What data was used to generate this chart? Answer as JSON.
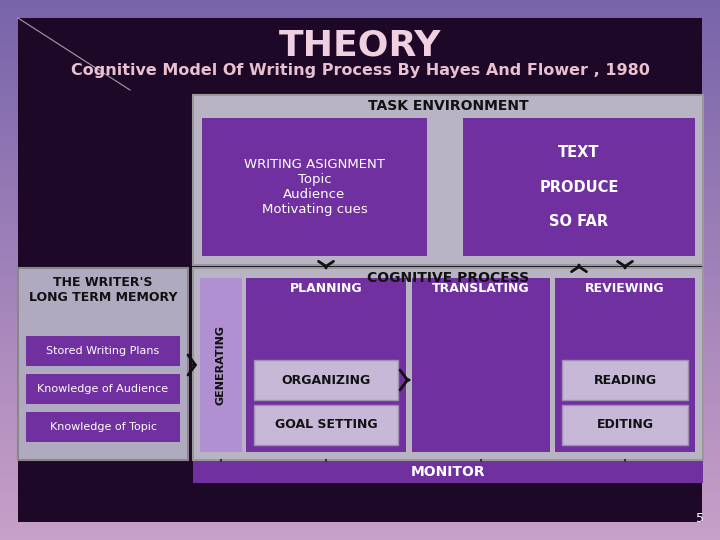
{
  "title": "THEORY",
  "subtitle": "Cognitive Model Of Writing Process By Hayes And Flower , 1980",
  "bg_gradient_top": "#c8a0c8",
  "bg_gradient_bottom": "#8090b0",
  "slide_bg": "#1a0520",
  "title_color": "#f0d0e0",
  "subtitle_color": "#e8c0d0",
  "task_env_label": "TASK ENVIRONMENT",
  "writing_box_text": "WRITING ASIGNMENT\nTopic\nAudience\nMotivating cues",
  "text_box_text": "TEXT\n\nPRODUCE\n\nSO FAR",
  "purple_box": "#7030a0",
  "purple_lighter": "#8040b8",
  "grey_bg": "#b8b4c4",
  "grey_bg2": "#c0bcc8",
  "writer_memory_label": "THE WRITER'S\nLONG TERM MEMORY",
  "writer_memory_bg": "#b0aac0",
  "knowledge_items": [
    "Knowledge of Topic",
    "Knowledge of Audience",
    "Stored Writing Plans"
  ],
  "cognitive_process_label": "COGNITIVE PROCESS",
  "planning_label": "PLANNING",
  "translating_label": "TRANSLATING",
  "reviewing_label": "REVIEWING",
  "generating_label": "GENERATING",
  "organizing_label": "ORGANIZING",
  "goal_setting_label": "GOAL SETTING",
  "reading_label": "READING",
  "editing_label": "EDITING",
  "monitor_label": "MONITOR",
  "page_num": "5",
  "arrow_color": "#111111",
  "inner_box_bg": "#c8b8d8",
  "inner_box_edge": "#a090b0"
}
